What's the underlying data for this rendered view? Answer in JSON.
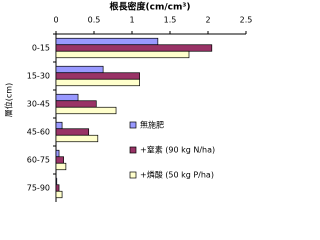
{
  "chart_data": {
    "type": "hbar",
    "title": "根長密度(cm/cm³)",
    "y_label": "層位(cm)",
    "categories": [
      "0-15",
      "15-30",
      "30-45",
      "45-60",
      "60-75",
      "75-90"
    ],
    "series": [
      {
        "name": "無施肥",
        "color": "#9999ff",
        "values": [
          1.34,
          0.62,
          0.29,
          0.08,
          0.04,
          0.01
        ]
      },
      {
        "name": "+窒素 (90 kg N/ha)",
        "color": "#993366",
        "values": [
          2.05,
          1.1,
          0.53,
          0.43,
          0.1,
          0.04
        ]
      },
      {
        "name": "+燐酸 (50 kg P/ha)",
        "color": "#ffffcc",
        "values": [
          1.75,
          1.1,
          0.79,
          0.55,
          0.13,
          0.08
        ]
      }
    ],
    "xlim": [
      0,
      2.5
    ],
    "xticks": [
      0,
      0.5,
      1,
      1.5,
      2,
      2.5
    ]
  }
}
